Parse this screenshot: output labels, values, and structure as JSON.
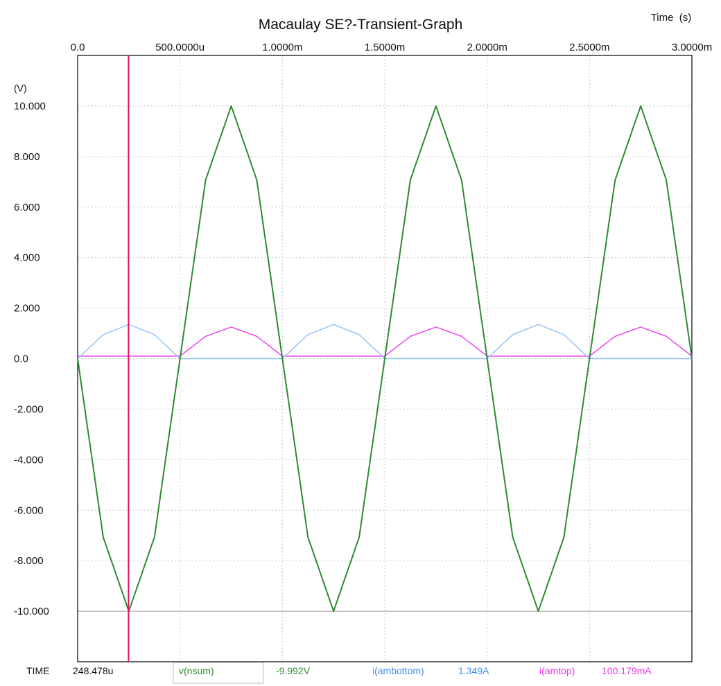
{
  "chart_data": {
    "type": "line",
    "title": "Macaulay SE?-Transient-Graph",
    "x_units_label": "Time  (s)",
    "y_units_label": "(V)",
    "x_tick_labels": [
      "0.0",
      "500.0000u",
      "1.0000m",
      "1.5000m",
      "2.0000m",
      "2.5000m",
      "3.0000m"
    ],
    "x_ticks": [
      0,
      0.0005,
      0.001,
      0.0015,
      0.002,
      0.0025,
      0.003
    ],
    "y_tick_labels": [
      "10.000",
      "8.000",
      "6.000",
      "4.000",
      "2.000",
      "0.0",
      "-2.000",
      "-4.000",
      "-6.000",
      "-8.000",
      "-10.000"
    ],
    "y_ticks": [
      10,
      8,
      6,
      4,
      2,
      0,
      -2,
      -4,
      -6,
      -8,
      -10
    ],
    "xlim": [
      0,
      0.003
    ],
    "ylim": [
      -12,
      12
    ],
    "grid": true,
    "cursor": {
      "time": 0.000248478,
      "color": "#e0105a",
      "readout": {
        "time_label": "TIME",
        "time_value": "248.478u",
        "items": [
          {
            "name": "v(nsum)",
            "value": "-9.992V",
            "color": "#2e8b2e"
          },
          {
            "name": "i(ambottom)",
            "value": "1.349A",
            "color": "#3d8ff0"
          },
          {
            "name": "i(amtop)",
            "value": "100.179mA",
            "color": "#ef33ef"
          }
        ]
      }
    },
    "series": [
      {
        "name": "v(nsum)",
        "color": "#2e8b2e",
        "x": [
          0,
          0.000125,
          0.00025,
          0.000375,
          0.0005,
          0.000625,
          0.00075,
          0.000875,
          0.001,
          0.001125,
          0.00125,
          0.001375,
          0.0015,
          0.001625,
          0.00175,
          0.001875,
          0.002,
          0.002125,
          0.00225,
          0.002375,
          0.0025,
          0.002625,
          0.00275,
          0.002875,
          0.003
        ],
        "y": [
          0,
          -7.07,
          -10,
          -7.07,
          0,
          7.07,
          10,
          7.07,
          0,
          -7.07,
          -10,
          -7.07,
          0,
          7.07,
          10,
          7.07,
          0,
          -7.07,
          -10,
          -7.07,
          0,
          7.07,
          10,
          7.07,
          0
        ]
      },
      {
        "name": "i(ambottom)",
        "color": "#8ec0f5",
        "x": [
          0,
          0.000125,
          0.00025,
          0.000375,
          0.0005,
          0.000625,
          0.00075,
          0.000875,
          0.001,
          0.001125,
          0.00125,
          0.001375,
          0.0015,
          0.001625,
          0.00175,
          0.001875,
          0.002,
          0.002125,
          0.00225,
          0.002375,
          0.0025,
          0.002625,
          0.00275,
          0.002875,
          0.003
        ],
        "y": [
          0,
          0.95,
          1.35,
          0.95,
          0,
          0,
          0,
          0,
          0,
          0.95,
          1.35,
          0.95,
          0,
          0,
          0,
          0,
          0,
          0.95,
          1.35,
          0.95,
          0,
          0,
          0,
          0,
          0
        ]
      },
      {
        "name": "i(amtop)",
        "color": "#ef33ef",
        "x": [
          0,
          0.000125,
          0.00025,
          0.000375,
          0.0005,
          0.000625,
          0.00075,
          0.000875,
          0.001,
          0.001125,
          0.00125,
          0.001375,
          0.0015,
          0.001625,
          0.00175,
          0.001875,
          0.002,
          0.002125,
          0.00225,
          0.002375,
          0.0025,
          0.002625,
          0.00275,
          0.002875,
          0.003
        ],
        "y": [
          0.1,
          0.1,
          0.1,
          0.1,
          0.1,
          0.88,
          1.25,
          0.88,
          0.1,
          0.1,
          0.1,
          0.1,
          0.1,
          0.88,
          1.25,
          0.88,
          0.1,
          0.1,
          0.1,
          0.1,
          0.1,
          0.88,
          1.25,
          0.88,
          0.1
        ]
      }
    ]
  }
}
